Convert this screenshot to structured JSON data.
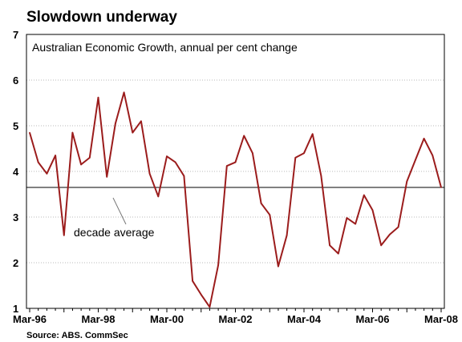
{
  "chart_data": {
    "type": "line",
    "title": "Slowdown underway",
    "subtitle": "Australian Economic Growth, annual per cent change",
    "source": "Source: ABS. CommSec",
    "ylim": [
      1,
      7
    ],
    "yticks": [
      "1",
      "2",
      "3",
      "4",
      "5",
      "6",
      "7"
    ],
    "xticks": [
      "Mar-96",
      "Mar-98",
      "Mar-00",
      "Mar-02",
      "Mar-04",
      "Mar-06",
      "Mar-08"
    ],
    "grid": true,
    "x": [
      "Mar-96",
      "Jun-96",
      "Sep-96",
      "Dec-96",
      "Mar-97",
      "Jun-97",
      "Sep-97",
      "Dec-97",
      "Mar-98",
      "Jun-98",
      "Sep-98",
      "Dec-98",
      "Mar-99",
      "Jun-99",
      "Sep-99",
      "Dec-99",
      "Mar-00",
      "Jun-00",
      "Sep-00",
      "Dec-00",
      "Mar-01",
      "Jun-01",
      "Sep-01",
      "Dec-01",
      "Mar-02",
      "Jun-02",
      "Sep-02",
      "Dec-02",
      "Mar-03",
      "Jun-03",
      "Sep-03",
      "Dec-03",
      "Mar-04",
      "Jun-04",
      "Sep-04",
      "Dec-04",
      "Mar-05",
      "Jun-05",
      "Sep-05",
      "Dec-05",
      "Mar-06",
      "Jun-06",
      "Sep-06",
      "Dec-06",
      "Mar-07",
      "Jun-07",
      "Sep-07",
      "Dec-07",
      "Mar-08"
    ],
    "series": [
      {
        "values": [
          4.85,
          4.2,
          3.95,
          4.35,
          2.6,
          4.85,
          4.15,
          4.3,
          5.62,
          3.88,
          5.05,
          5.73,
          4.85,
          5.1,
          3.95,
          3.45,
          4.33,
          4.2,
          3.9,
          1.6,
          1.3,
          1.03,
          1.95,
          4.12,
          4.2,
          4.78,
          4.4,
          3.3,
          3.05,
          1.92,
          2.6,
          4.3,
          4.4,
          4.82,
          3.9,
          2.38,
          2.2,
          2.98,
          2.85,
          3.48,
          3.15,
          2.38,
          2.62,
          2.78,
          3.78,
          4.25,
          4.72,
          4.35,
          3.65
        ]
      }
    ],
    "reference_line": {
      "label": "decade average",
      "value": 3.65
    },
    "colors": {
      "line": "#9b1c1c",
      "reference": "#000000",
      "grid": "#b8b8b8",
      "axis": "#000000"
    }
  }
}
